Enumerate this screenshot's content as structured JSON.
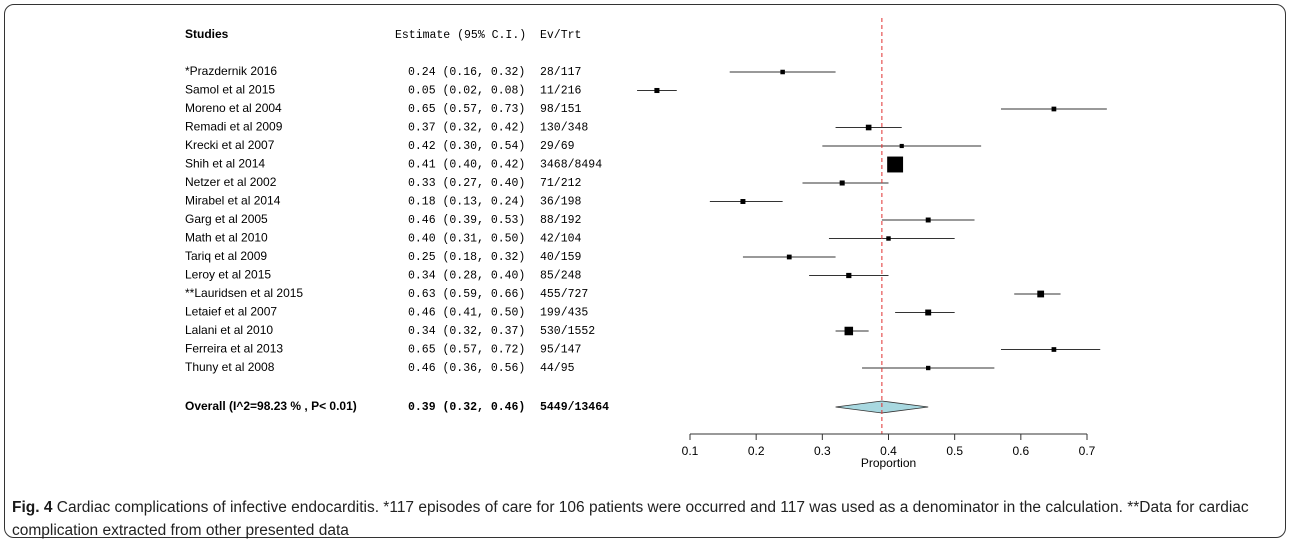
{
  "chart_data": {
    "type": "forest",
    "column_headers": [
      "Studies",
      "Estimate (95% C.I.)",
      "Ev/Trt"
    ],
    "categories": [
      "*Prazdernik  2016",
      "Samol et al  2015",
      "Moreno et al 2004",
      "Remadi et al 2009",
      "Krecki et al 2007",
      "Shih et al 2014",
      "Netzer et al  2002",
      "Mirabel et al  2014",
      "Garg et al 2005",
      "Math et al 2010",
      "Tariq et al  2009",
      "Leroy et al 2015",
      "**Lauridsen et al 2015",
      "Letaief et al 2007",
      "Lalani et al 2010",
      "Ferreira et al 2013",
      "Thuny et al 2008"
    ],
    "values": [
      0.24,
      0.05,
      0.65,
      0.37,
      0.42,
      0.41,
      0.33,
      0.18,
      0.46,
      0.4,
      0.25,
      0.34,
      0.63,
      0.46,
      0.34,
      0.65,
      0.46
    ],
    "lower": [
      0.16,
      0.02,
      0.57,
      0.32,
      0.3,
      0.4,
      0.27,
      0.13,
      0.39,
      0.31,
      0.18,
      0.28,
      0.59,
      0.41,
      0.32,
      0.57,
      0.36
    ],
    "upper": [
      0.32,
      0.08,
      0.73,
      0.42,
      0.54,
      0.42,
      0.4,
      0.24,
      0.53,
      0.5,
      0.32,
      0.4,
      0.66,
      0.5,
      0.37,
      0.72,
      0.56
    ],
    "value_labels": [
      "0.24 (0.16, 0.32)",
      "0.05 (0.02, 0.08)",
      "0.65 (0.57, 0.73)",
      "0.37 (0.32, 0.42)",
      "0.42 (0.30, 0.54)",
      "0.41 (0.40, 0.42)",
      "0.33 (0.27, 0.40)",
      "0.18 (0.13, 0.24)",
      "0.46 (0.39, 0.53)",
      "0.40 (0.31, 0.50)",
      "0.25 (0.18, 0.32)",
      "0.34 (0.28, 0.40)",
      "0.63 (0.59, 0.66)",
      "0.46 (0.41, 0.50)",
      "0.34 (0.32, 0.37)",
      "0.65 (0.57, 0.72)",
      "0.46 (0.36, 0.56)"
    ],
    "ev_trt_labels": [
      "28/117",
      "11/216",
      "98/151",
      "130/348",
      "29/69",
      "3468/8494",
      "71/212",
      "36/198",
      "88/192",
      "42/104",
      "40/159",
      "85/248",
      "455/727",
      "199/435",
      "530/1552",
      "95/147",
      "44/95"
    ],
    "totals": [
      117,
      216,
      151,
      348,
      69,
      8494,
      212,
      198,
      192,
      104,
      159,
      248,
      727,
      435,
      1552,
      147,
      95
    ],
    "overall": {
      "label": "Overall (I^2=98.23 % , P< 0.01)",
      "value": 0.39,
      "lower": 0.32,
      "upper": 0.46,
      "value_label": "0.39 (0.32, 0.46)",
      "ev_trt_label": "5449/13464"
    },
    "xlabel": "Proportion",
    "xlim": [
      0.1,
      0.7
    ],
    "xticks": [
      0.1,
      0.2,
      0.3,
      0.4,
      0.5,
      0.6,
      0.7
    ],
    "marker_color": "#000000",
    "diamond_color": "#a8d8e0",
    "reference_color": "#e03030"
  },
  "caption": {
    "label": "Fig. 4",
    "text": "Cardiac complications of infective endocarditis. *117 episodes of care for 106 patients were occurred and 117 was used as a denominator in the calculation. **Data for cardiac complication extracted from other presented data"
  }
}
